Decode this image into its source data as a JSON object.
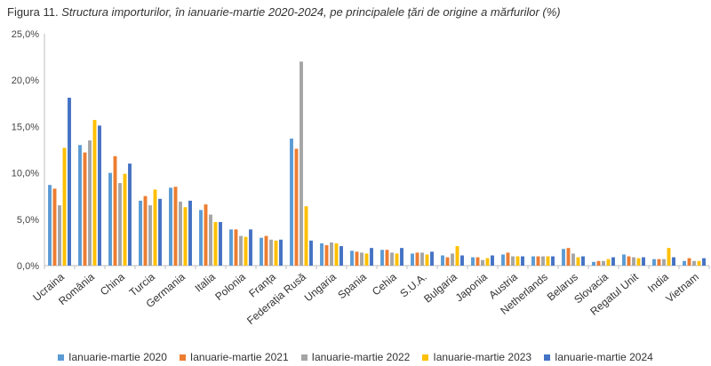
{
  "title_prefix": "Figura 11.",
  "title_main": "Structura importurilor, în ianuarie-martie 2020-2024, pe principalele ţări de origine a mărfurilor (%)",
  "chart_data": {
    "type": "bar",
    "title": "Figura 11. Structura importurilor, în ianuarie-martie 2020-2024, pe principalele ţări de origine a mărfurilor (%)",
    "xlabel": "",
    "ylabel": "",
    "ylim": [
      0,
      25
    ],
    "y_ticks": [
      "0,0%",
      "5,0%",
      "10,0%",
      "15,0%",
      "20,0%",
      "25,0%"
    ],
    "grid": false,
    "legend_position": "bottom",
    "categories": [
      "Ucraina",
      "România",
      "China",
      "Turcia",
      "Germania",
      "Italia",
      "Polonia",
      "Franța",
      "Federația Rusă",
      "Ungaria",
      "Spania",
      "Cehia",
      "S.U.A.",
      "Bulgaria",
      "Japonia",
      "Austria",
      "Netherlands",
      "Belarus",
      "Slovacia",
      "Regatul Unit",
      "India",
      "Vietnam"
    ],
    "series": [
      {
        "name": "Ianuarie-martie 2020",
        "color": "#5b9bd5",
        "values": [
          8.7,
          13.0,
          10.0,
          7.0,
          8.4,
          6.0,
          3.9,
          3.0,
          13.7,
          2.4,
          1.6,
          1.7,
          1.3,
          1.1,
          0.9,
          1.2,
          1.0,
          1.8,
          0.4,
          1.2,
          0.7,
          0.5
        ]
      },
      {
        "name": "Ianuarie-martie 2021",
        "color": "#ed7d31",
        "values": [
          8.3,
          12.2,
          11.8,
          7.5,
          8.5,
          6.6,
          3.9,
          3.2,
          12.6,
          2.2,
          1.5,
          1.7,
          1.4,
          0.9,
          0.9,
          1.4,
          1.0,
          1.9,
          0.5,
          1.0,
          0.7,
          0.8
        ]
      },
      {
        "name": "Ianuarie-martie 2022",
        "color": "#a5a5a5",
        "values": [
          6.5,
          13.5,
          8.9,
          6.5,
          6.9,
          5.5,
          3.2,
          2.8,
          22.0,
          2.5,
          1.4,
          1.4,
          1.4,
          1.3,
          0.6,
          1.0,
          1.0,
          1.3,
          0.5,
          0.9,
          0.7,
          0.5
        ]
      },
      {
        "name": "Ianuarie-martie 2023",
        "color": "#ffc000",
        "values": [
          12.7,
          15.7,
          9.9,
          8.2,
          6.3,
          4.7,
          3.1,
          2.7,
          6.4,
          2.4,
          1.3,
          1.3,
          1.2,
          2.1,
          0.8,
          1.0,
          1.0,
          0.9,
          0.7,
          0.8,
          1.9,
          0.5
        ]
      },
      {
        "name": "Ianuarie-martie 2024",
        "color": "#4472c4",
        "values": [
          18.1,
          15.1,
          11.0,
          7.2,
          7.0,
          4.7,
          3.9,
          2.8,
          2.7,
          2.1,
          1.9,
          1.9,
          1.5,
          1.1,
          1.1,
          1.0,
          1.0,
          1.0,
          0.9,
          0.9,
          0.9,
          0.8
        ]
      }
    ]
  }
}
